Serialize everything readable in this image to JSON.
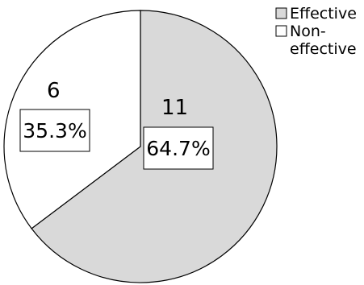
{
  "chart_data": {
    "type": "pie",
    "title": "",
    "legend_position": "top-right",
    "slices": [
      {
        "name": "Effective",
        "legend_lines": [
          "Effective"
        ],
        "value": 11,
        "percent_label": "64.7%",
        "color": "#d9d9d9"
      },
      {
        "name": "Non-effective",
        "legend_lines": [
          "Non-",
          "effective"
        ],
        "value": 6,
        "percent_label": "35.3%",
        "color": "#ffffff"
      }
    ],
    "stroke_color": "#000000"
  }
}
